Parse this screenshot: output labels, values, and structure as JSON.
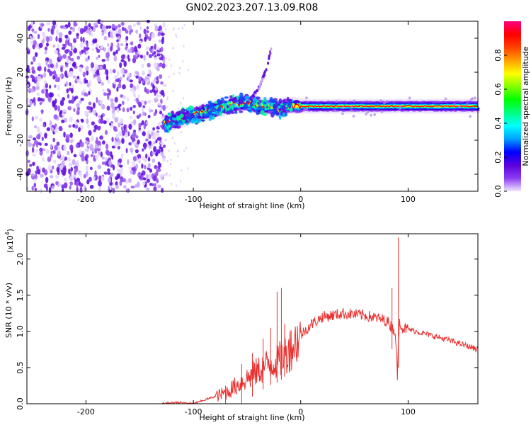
{
  "title": "GN02.2023.207.13.09.R08",
  "colorbar": {
    "label": "Normalized spectral amplitude",
    "range": [
      0.0,
      1.0
    ],
    "ticks": [
      "0.0",
      "0.2",
      "0.4",
      "0.6",
      "0.8"
    ],
    "colors": [
      "#f0e6ff",
      "#8c3cf0",
      "#5a00dc",
      "#0000ff",
      "#00a0ff",
      "#00ffff",
      "#00ff80",
      "#00ff00",
      "#80ff00",
      "#ffff00",
      "#ffa000",
      "#ff4000",
      "#ff0000",
      "#ff0080"
    ]
  },
  "chart_data": [
    {
      "type": "heatmap",
      "title": "GN02.2023.207.13.09.R08",
      "xlabel": "Height of straight line (km)",
      "ylabel": "Frequency (Hz)",
      "xlim": [
        -255,
        165
      ],
      "ylim": [
        -50,
        50
      ],
      "xticks": [
        "-200",
        "-100",
        "0",
        "100"
      ],
      "yticks": [
        "-40",
        "-20",
        "0",
        "20",
        "40"
      ],
      "ridge": {
        "x": [
          -127,
          -100,
          -80,
          -65,
          -50,
          -40,
          -30,
          -25,
          -20,
          -15,
          0,
          20,
          40,
          60,
          80,
          100,
          120,
          140,
          165
        ],
        "frequency": [
          -10,
          -5,
          -2,
          1,
          2,
          0,
          0,
          0,
          -2,
          0,
          0,
          0,
          0,
          0,
          0,
          0,
          0,
          0,
          0
        ]
      },
      "noise_region_x": [
        -255,
        -127
      ],
      "arc_feature": {
        "x": [
          -45,
          -38,
          -32,
          -27
        ],
        "frequency": [
          5,
          12,
          22,
          35
        ]
      }
    },
    {
      "type": "line",
      "xlabel": "Height of straight line (km)",
      "ylabel": "SNR (10 * v/v)",
      "y_multiplier": "(x10",
      "y_multiplier_exponent": "4",
      "xlim": [
        -255,
        165
      ],
      "ylim": [
        0,
        2.35
      ],
      "xticks": [
        "-200",
        "-100",
        "0",
        "100"
      ],
      "yticks": [
        "0.0",
        "0.5",
        "1.0",
        "1.5",
        "2.0"
      ],
      "color": "#e8302e",
      "series": [
        {
          "x": [
            -255,
            -130,
            -115,
            -100,
            -90,
            -70,
            -55,
            -40,
            -30,
            -20,
            -10,
            0,
            10,
            20,
            40,
            60,
            80,
            88,
            90,
            92,
            94,
            100,
            120,
            140,
            165
          ],
          "y": [
            0.0,
            0.0,
            0.02,
            0.0,
            0.05,
            0.15,
            0.3,
            0.45,
            0.55,
            0.6,
            0.75,
            0.95,
            1.1,
            1.2,
            1.25,
            1.22,
            1.15,
            1.0,
            0.4,
            1.2,
            1.05,
            1.03,
            0.95,
            0.87,
            0.75
          ]
        }
      ],
      "spikes": {
        "x": [
          -70,
          -55,
          -45,
          -35,
          -28,
          -22,
          -18,
          -15,
          -10,
          85,
          91
        ],
        "y": [
          0.25,
          0.55,
          0.7,
          0.9,
          1.05,
          1.55,
          1.6,
          1.1,
          1.0,
          1.6,
          2.3
        ]
      }
    }
  ]
}
